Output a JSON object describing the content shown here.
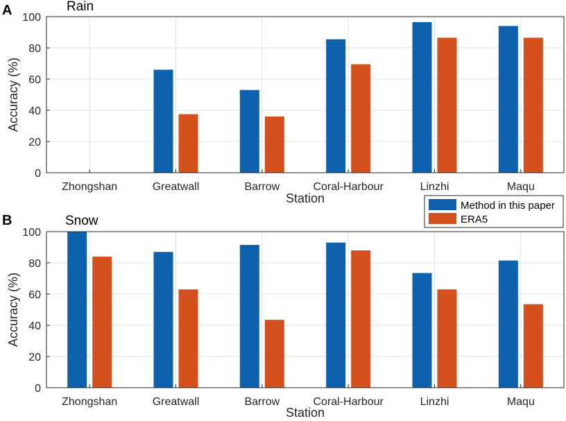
{
  "chart_data": [
    {
      "panel_label": "A",
      "type": "bar",
      "title": "Rain",
      "xlabel": "Station",
      "ylabel": "Accuracy (%)",
      "ylim": [
        0,
        100
      ],
      "yticks": [
        0,
        20,
        40,
        60,
        80,
        100
      ],
      "grid": true,
      "categories": [
        "Zhongshan",
        "Greatwall",
        "Barrow",
        "Coral-Harbour",
        "Linzhi",
        "Maqu"
      ],
      "series": [
        {
          "name": "Method in this paper",
          "color": "#0e62ad",
          "values": [
            null,
            66,
            53,
            85.5,
            96.5,
            94
          ]
        },
        {
          "name": "ERA5",
          "color": "#d4511e",
          "values": [
            null,
            37.5,
            36,
            69.5,
            86.5,
            86.5
          ]
        }
      ]
    },
    {
      "panel_label": "B",
      "type": "bar",
      "title": "Snow",
      "xlabel": "Station",
      "ylabel": "Accuracy (%)",
      "ylim": [
        0,
        100
      ],
      "yticks": [
        0,
        20,
        40,
        60,
        80,
        100
      ],
      "grid": true,
      "categories": [
        "Zhongshan",
        "Greatwall",
        "Barrow",
        "Coral-Harbour",
        "Linzhi",
        "Maqu"
      ],
      "series": [
        {
          "name": "Method in this paper",
          "color": "#0e62ad",
          "values": [
            100,
            87,
            91.5,
            93,
            73.5,
            81.5
          ]
        },
        {
          "name": "ERA5",
          "color": "#d4511e",
          "values": [
            84,
            63,
            43.5,
            88,
            63,
            53.5
          ]
        }
      ]
    }
  ],
  "legend": {
    "placement": "between-panels-right",
    "entries": [
      {
        "label": "Method in this paper",
        "color": "#0e62ad"
      },
      {
        "label": "ERA5",
        "color": "#d4511e"
      }
    ]
  }
}
